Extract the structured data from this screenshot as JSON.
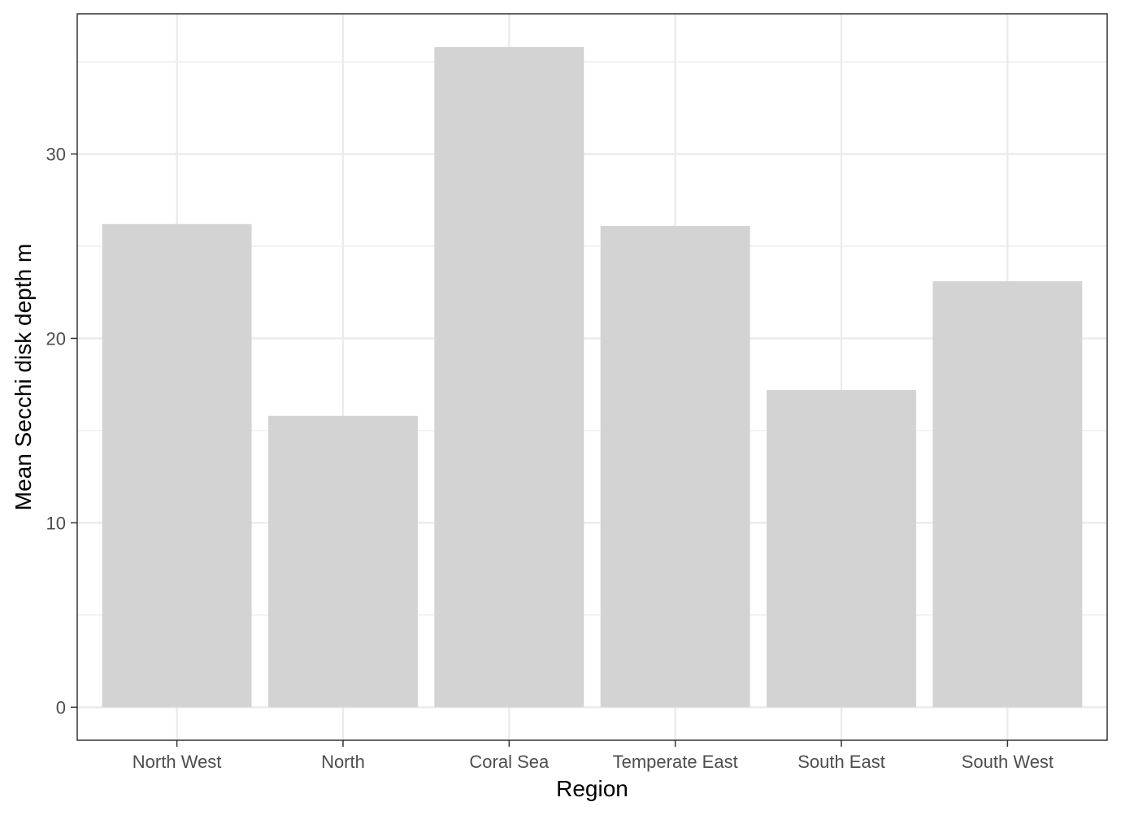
{
  "chart_data": {
    "type": "bar",
    "title": "",
    "xlabel": "Region",
    "ylabel": "Mean Secchi disk depth m",
    "categories": [
      "North West",
      "North",
      "Coral Sea",
      "Temperate East",
      "South East",
      "South West"
    ],
    "values": [
      26.2,
      15.8,
      35.8,
      26.1,
      17.2,
      23.1
    ],
    "ylim": [
      -1.79,
      37.6
    ],
    "yticks": [
      0,
      10,
      20,
      30
    ],
    "ytick_labels": [
      "0",
      "10",
      "20",
      "30"
    ],
    "grid": true,
    "legend": "none",
    "colors": {
      "bar": "#d3d3d3",
      "grid": "#ebebeb",
      "panel_border": "#333333",
      "tick_text": "#4d4d4d",
      "title_text": "#000000"
    }
  }
}
